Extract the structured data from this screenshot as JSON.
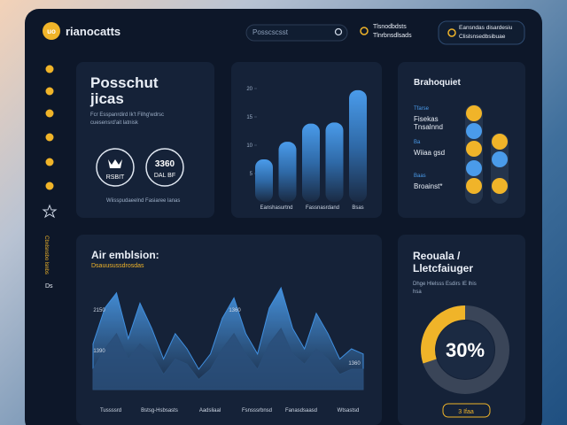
{
  "header": {
    "logo": "uo",
    "brand": "rianocatts",
    "search": "Posscscsst",
    "notice": [
      "Tlsnodbdsts",
      "Tlnrbnsdlsads"
    ],
    "button": [
      "Eansndas disardesiu",
      "Clislsnsedbsibuae"
    ]
  },
  "sidebar": {
    "vertical_text": "Cbxlsnsbo lsnbs",
    "badge": "Ds"
  },
  "summary_card": {
    "title": [
      "Posschut",
      "jicas"
    ],
    "text": [
      "Fcr Esspanrdird Ik't Filhg'wdrsc",
      "cuesensrd'ait latnisk"
    ],
    "stat_1": "RSBIT",
    "stat_2": [
      "3360",
      "DAL BF"
    ],
    "footer": "Wiisspudaeelnd Fasiaree lanas"
  },
  "bar_chart": {
    "ylim": [
      0,
      20
    ],
    "yticks": [
      20,
      15,
      10,
      5
    ],
    "values": [
      7.5,
      10.6,
      13.8,
      14,
      19.7
    ],
    "x_labels": [
      "Eanshasurtnd",
      "Fassnasrdand",
      "Bsas"
    ]
  },
  "list_card": {
    "title": "Brahoquiet",
    "items": [
      {
        "tag": "Tfarse",
        "name": [
          "Fisekas",
          "Tnsalnnd"
        ]
      },
      {
        "tag": "Ba",
        "name": [
          "Wiiaa gsd"
        ]
      },
      {
        "tag": "Baas",
        "name": [
          "Broainst*"
        ]
      }
    ]
  },
  "area_chart": {
    "title": "Air emblsion:",
    "subtitle": "Dsauusussdrosdas",
    "ylim": [
      0,
      100
    ],
    "labels": [
      "2150",
      "1360",
      "1390",
      "1360"
    ],
    "x_labels": [
      "Tussssrd",
      "Bstsg-Hsbsasts",
      "Aadsliaal",
      "Fsnsssrbnsd",
      "Fanasdsaasd",
      "Wtsastsd"
    ],
    "series": [
      {
        "color": "#3f8fe0",
        "values": [
          45,
          80,
          95,
          50,
          85,
          60,
          30,
          55,
          40,
          20,
          35,
          70,
          90,
          55,
          35,
          80,
          100,
          60,
          40,
          75,
          55,
          30,
          40,
          35
        ]
      },
      {
        "color": "#2a4f7a",
        "values": [
          20,
          40,
          55,
          30,
          45,
          35,
          15,
          30,
          25,
          10,
          20,
          40,
          55,
          35,
          20,
          45,
          60,
          35,
          25,
          40,
          30,
          15,
          20,
          20
        ]
      }
    ]
  },
  "donut_card": {
    "title": [
      "Reouala /",
      "Lletcfaiuger"
    ],
    "text": [
      "Dhge Hlelsss Esdirs IE lhis",
      "hsa"
    ],
    "value": 30,
    "value_label": "30%",
    "button": "3 Ifaa"
  }
}
